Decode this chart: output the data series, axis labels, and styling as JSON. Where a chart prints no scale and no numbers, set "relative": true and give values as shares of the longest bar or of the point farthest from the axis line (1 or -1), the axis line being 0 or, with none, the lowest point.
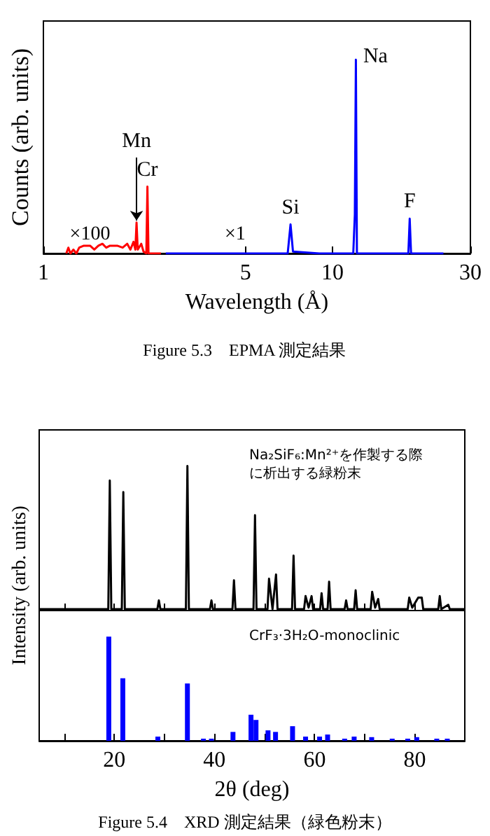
{
  "chart_data": [
    {
      "type": "line",
      "xlabel": "Wavelength (Å)",
      "ylabel": "Counts (arb. units)",
      "log": "x",
      "xlim": [
        1,
        30
      ],
      "xticks": [
        1,
        5,
        10,
        30
      ],
      "relative": true,
      "marker": "none",
      "series": [
        {
          "name": "×100",
          "color": "#ff0000",
          "x": [
            1.2,
            1.22,
            1.24,
            1.27,
            1.3,
            1.33,
            1.38,
            1.45,
            1.5,
            1.55,
            1.6,
            1.65,
            1.7,
            1.8,
            1.88,
            1.95,
            2.0,
            2.05,
            2.08,
            2.1,
            2.12,
            2.18,
            2.22,
            2.27,
            2.29,
            2.31,
            2.45,
            2.55
          ],
          "values": [
            0,
            0.03,
            0,
            0.02,
            0,
            0.03,
            0.04,
            0.04,
            0.02,
            0.04,
            0.05,
            0.03,
            0.04,
            0.04,
            0.03,
            0.05,
            0.02,
            0.06,
            0.02,
            0.16,
            0.02,
            0.05,
            0.01,
            0,
            0.345,
            0,
            0,
            0
          ]
        },
        {
          "name": "×1",
          "color": "#0000ff",
          "x": [
            2.65,
            4,
            6,
            7.0,
            7.16,
            7.3,
            9,
            11.8,
            11.95,
            12.05,
            12.15,
            15,
            18.3,
            18.5,
            18.7,
            24.2
          ],
          "values": [
            0,
            0,
            0,
            0,
            0.15,
            0.01,
            0,
            0,
            0.2,
            1,
            0,
            0,
            0,
            0.18,
            0,
            0
          ]
        }
      ],
      "annotations": [
        {
          "text": "Mn",
          "x": 2.1,
          "y": 0.16
        },
        {
          "text": "Cr",
          "x": 2.29,
          "y": 0.345
        },
        {
          "text": "Si",
          "x": 7.16,
          "y": 0.15
        },
        {
          "text": "Na",
          "x": 12.05,
          "y": 1
        },
        {
          "text": "F",
          "x": 18.5,
          "y": 0.18
        },
        "Figure 5.3　EPMA 測定結果"
      ]
    },
    {
      "type": "line",
      "ylabel": "Intensity (arb. units)",
      "xlim": [
        5,
        90
      ],
      "xticks": [
        {
          "value": 10,
          "label": null
        },
        20,
        {
          "value": 30,
          "label": null
        },
        40,
        {
          "value": 50,
          "label": null
        },
        60,
        {
          "value": 70,
          "label": null
        },
        80
      ],
      "relative": true,
      "marker": "none",
      "tick_labels": false,
      "x": [
        5,
        12,
        18.8,
        19.1,
        19.4,
        21.5,
        21.8,
        22.1,
        28.6,
        28.9,
        29.2,
        34.3,
        34.6,
        34.9,
        39.1,
        39.4,
        39.7,
        43.6,
        43.9,
        44.2,
        47.8,
        48.1,
        48.4,
        50.6,
        50.9,
        51.6,
        52.3,
        52.6,
        55.5,
        55.8,
        56.1,
        57.9,
        58.2,
        58.8,
        59.4,
        59.7,
        61.1,
        61.4,
        61.7,
        62.6,
        62.9,
        63.2,
        66.0,
        66.3,
        66.6,
        67.9,
        68.2,
        68.5,
        71.2,
        71.5,
        72.1,
        72.7,
        73.0,
        78.6,
        78.9,
        79.5,
        80.7,
        81.4,
        81.7,
        84.7,
        85.0,
        85.3,
        86.7,
        87.0,
        90
      ],
      "series": [
        {
          "color": "#000000",
          "values": [
            0.01,
            0.01,
            0.01,
            0.9,
            0.01,
            0.01,
            0.82,
            0.01,
            0.01,
            0.07,
            0.01,
            0.01,
            1.0,
            0.01,
            0.01,
            0.07,
            0.01,
            0.01,
            0.21,
            0.01,
            0.01,
            0.66,
            0.01,
            0.01,
            0.22,
            0.01,
            0.25,
            0.01,
            0.01,
            0.38,
            0.01,
            0.01,
            0.1,
            0.02,
            0.1,
            0.01,
            0.01,
            0.12,
            0.01,
            0.01,
            0.2,
            0.01,
            0.01,
            0.07,
            0.01,
            0.01,
            0.14,
            0.01,
            0.01,
            0.13,
            0.02,
            0.08,
            0.01,
            0.01,
            0.09,
            0.02,
            0.09,
            0.09,
            0.01,
            0.01,
            0.1,
            0.01,
            0.04,
            0.01,
            0.01
          ]
        }
      ],
      "annotations": [
        "Na₂SiF₆:Mn²⁺を作製する際に析出する緑粉末"
      ]
    },
    {
      "type": "bar",
      "xlabel": "2θ (deg)",
      "xlim": [
        5,
        90
      ],
      "xticks": [
        {
          "value": 10,
          "label": null
        },
        20,
        {
          "value": 30,
          "label": null
        },
        40,
        {
          "value": 50,
          "label": null
        },
        60,
        {
          "value": 70,
          "label": null
        },
        80
      ],
      "relative": true,
      "tick_labels": "x",
      "x": [
        18.9,
        21.7,
        28.7,
        34.6,
        37.8,
        39.4,
        43.7,
        47.3,
        48.3,
        50.7,
        52.2,
        55.6,
        58.2,
        61.0,
        62.6,
        66.0,
        67.9,
        71.4,
        75.5,
        78.6,
        80.4,
        84.4,
        86.5
      ],
      "series": [
        {
          "color": "#0000ff",
          "values": [
            1.0,
            0.6,
            0.04,
            0.55,
            0.02,
            0.02,
            0.085,
            0.25,
            0.2,
            0.1,
            0.085,
            0.14,
            0.04,
            0.04,
            0.06,
            0.02,
            0.04,
            0.035,
            0.02,
            0.02,
            0.035,
            0.02,
            0.02
          ]
        }
      ],
      "annotations": [
        "CrF₃·3H₂O-monoclinic",
        "Figure 5.4　XRD 測定結果（緑色粉末）"
      ]
    }
  ]
}
